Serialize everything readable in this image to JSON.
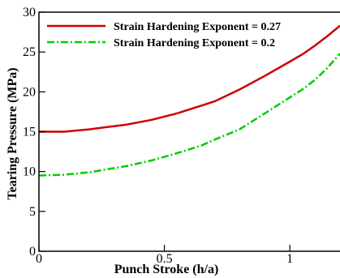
{
  "chart_data": {
    "type": "line",
    "title": "",
    "xlabel": "Punch Stroke (h/a)",
    "ylabel": "Tearing Pressure (MPa)",
    "xlim": [
      0,
      1.2
    ],
    "ylim": [
      0,
      30
    ],
    "xticks": [
      0,
      0.5,
      1
    ],
    "xtick_labels": [
      "0",
      "0.5",
      "1"
    ],
    "yticks": [
      0,
      5,
      10,
      15,
      20,
      25,
      30
    ],
    "ytick_labels": [
      "0",
      "5",
      "10",
      "15",
      "20",
      "25",
      "30"
    ],
    "grid": false,
    "legend": "top-inside",
    "series": [
      {
        "name": "Strain Hardening Exponent = 0.27",
        "color": "#cc0000",
        "style": "solid",
        "x": [
          0,
          0.05,
          0.1,
          0.2,
          0.35,
          0.45,
          0.55,
          0.65,
          0.7,
          0.8,
          0.9,
          1.0,
          1.05,
          1.1,
          1.15,
          1.2
        ],
        "y": [
          15.0,
          15.0,
          15.0,
          15.3,
          15.9,
          16.5,
          17.3,
          18.3,
          18.8,
          20.3,
          22.0,
          23.8,
          24.7,
          25.8,
          27.0,
          28.3
        ]
      },
      {
        "name": "Strain Hardening Exponent = 0.2",
        "color": "#00cc00",
        "style": "dashdot",
        "x": [
          0,
          0.1,
          0.2,
          0.35,
          0.45,
          0.55,
          0.65,
          0.7,
          0.8,
          0.9,
          1.0,
          1.05,
          1.1,
          1.15,
          1.2
        ],
        "y": [
          9.5,
          9.6,
          9.9,
          10.7,
          11.4,
          12.3,
          13.3,
          14.0,
          15.3,
          17.3,
          19.3,
          20.3,
          21.5,
          23.0,
          24.8
        ]
      }
    ]
  }
}
